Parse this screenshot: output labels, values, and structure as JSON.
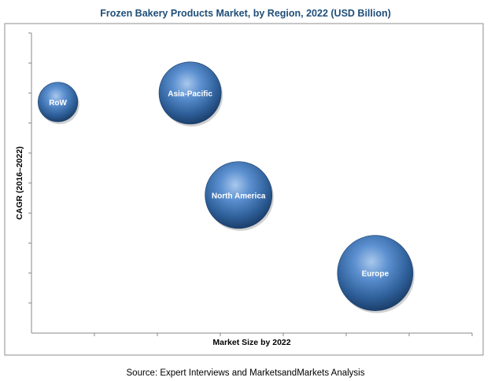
{
  "chart_data": {
    "type": "bubble",
    "title": "Frozen Bakery Products Market, by Region, 2022 (USD Billion)",
    "xlabel": "Market Size by 2022",
    "ylabel": "CAGR (2016–2022)",
    "x_ticks": 7,
    "y_ticks": 10,
    "grid": false,
    "source": "Source: Expert Interviews and MarketsandMarkets Analysis",
    "bubble_color": "#4a7ebb",
    "bubbles": [
      {
        "label": "RoW",
        "x": 0.06,
        "y": 0.77,
        "size": 0.13
      },
      {
        "label": "Asia-Pacific",
        "x": 0.36,
        "y": 0.8,
        "size": 0.32
      },
      {
        "label": "North America",
        "x": 0.47,
        "y": 0.46,
        "size": 0.37
      },
      {
        "label": "Europe",
        "x": 0.78,
        "y": 0.2,
        "size": 0.47
      }
    ]
  }
}
